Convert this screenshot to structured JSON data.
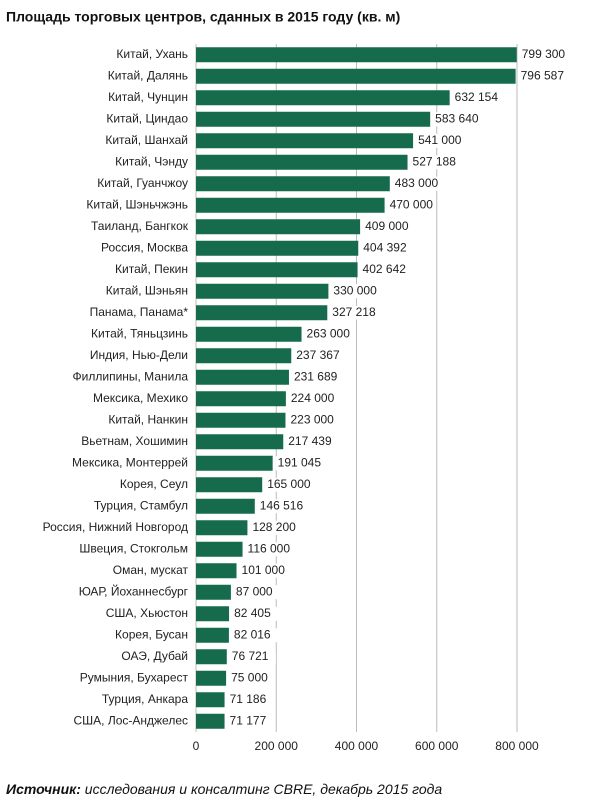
{
  "chart_data": {
    "type": "barh",
    "title": "Площадь торговых центров, сданных в 2015 году (кв. м)",
    "categories": [
      "Китай, Ухань",
      "Китай, Далянь",
      "Китай, Чунцин",
      "Китай, Циндао",
      "Китай, Шанхай",
      "Китай, Чэнду",
      "Китай, Гуанчжоу",
      "Китай, Шэньчжэнь",
      "Таиланд, Бангкок",
      "Россия, Москва",
      "Китай, Пекин",
      "Китай, Шэньян",
      "Панама, Панама*",
      "Китай, Тяньцзинь",
      "Индия, Нью-Дели",
      "Филлипины, Манила",
      "Мексика, Мехико",
      "Китай, Нанкин",
      "Вьетнам, Хошимин",
      "Мексика, Монтеррей",
      "Корея, Сеул",
      "Турция, Стамбул",
      "Россия, Нижний Новгород",
      "Швеция, Стокгольм",
      "Оман, мускат",
      "ЮАР, Йоханнесбург",
      "США, Хьюстон",
      "Корея, Бусан",
      "ОАЭ, Дубай",
      "Румыния, Бухарест",
      "Турция, Анкара",
      "США, Лос-Анджелес"
    ],
    "values": [
      799300,
      796587,
      632154,
      583640,
      541000,
      527188,
      483000,
      470000,
      409000,
      404392,
      402642,
      330000,
      327218,
      263000,
      237367,
      231689,
      224000,
      223000,
      217439,
      191045,
      165000,
      146516,
      128200,
      116000,
      101000,
      87000,
      82405,
      82016,
      76721,
      75000,
      71186,
      71177
    ],
    "value_labels": [
      "799 300",
      "796 587",
      "632 154",
      "583 640",
      "541 000",
      "527 188",
      "483 000",
      "470 000",
      "409 000",
      "404 392",
      "402 642",
      "330 000",
      "327 218",
      "263 000",
      "237 367",
      "231 689",
      "224 000",
      "223 000",
      "217 439",
      "191 045",
      "165 000",
      "146 516",
      "128 200",
      "116 000",
      "101 000",
      "87 000",
      "82 405",
      "82 016",
      "76 721",
      "75 000",
      "71 186",
      "71 177"
    ],
    "color": "#176b4d",
    "xlim": [
      0,
      800000
    ],
    "xticks": [
      0,
      {
        "value": 200000,
        "label": "200 000"
      },
      {
        "value": 400000,
        "label": "400 000"
      },
      {
        "value": 600000,
        "label": "600 000"
      },
      {
        "value": 800000,
        "label": "800 000"
      }
    ],
    "grid": true
  },
  "source_label": "Источник:",
  "source_text": "исследования и консалтинг CBRE, декабрь 2015 года"
}
